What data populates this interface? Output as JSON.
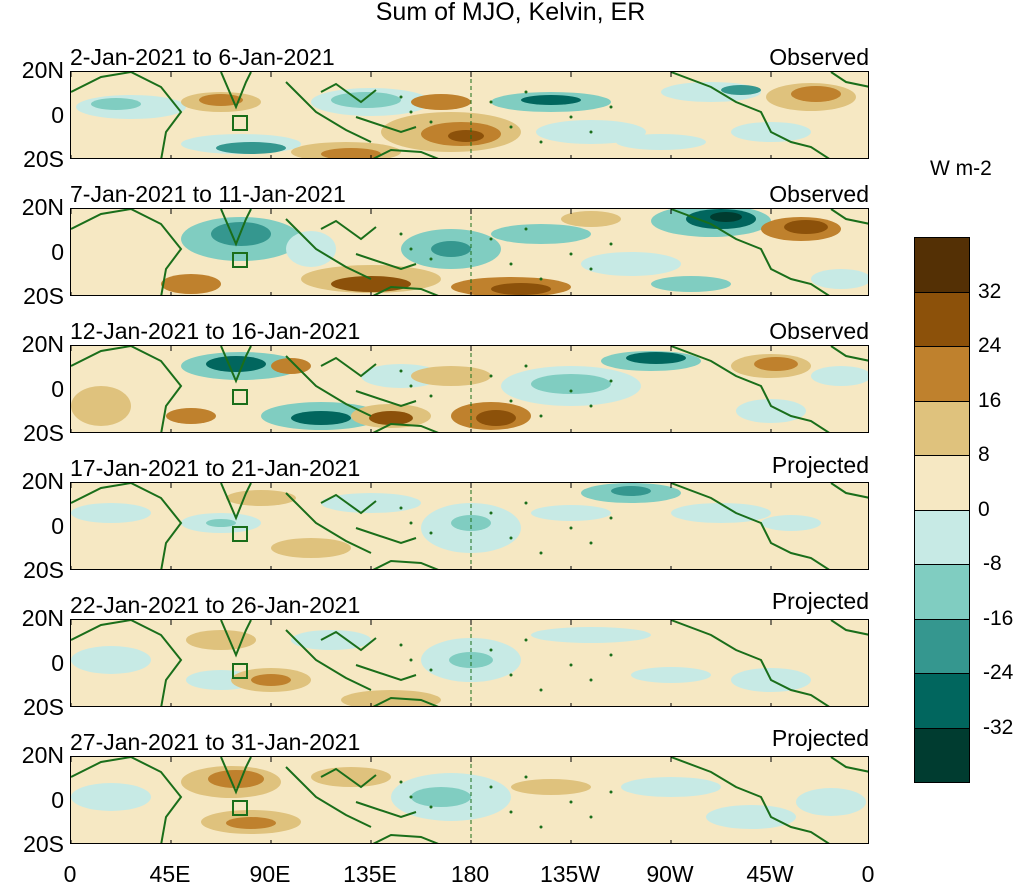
{
  "title": "Sum of MJO, Kelvin, ER",
  "colorbar": {
    "units": "W m-2",
    "levels": [
      "32",
      "24",
      "16",
      "8",
      "0",
      "-8",
      "-16",
      "-24",
      "-32"
    ],
    "colors": [
      "#543005",
      "#8c510a",
      "#bf812d",
      "#dfc27d",
      "#f6e8c3",
      "#c7eae5",
      "#80cdc1",
      "#35978f",
      "#01665e",
      "#003c30"
    ]
  },
  "lat_labels": [
    "20N",
    "0",
    "20S"
  ],
  "lon_labels": [
    "0",
    "45E",
    "90E",
    "135E",
    "180",
    "135W",
    "90W",
    "45W",
    "0"
  ],
  "coast_color": "#1a6e1a",
  "panels": [
    {
      "period": "2-Jan-2021 to 6-Jan-2021",
      "type": "Observed"
    },
    {
      "period": "7-Jan-2021 to 11-Jan-2021",
      "type": "Observed"
    },
    {
      "period": "12-Jan-2021 to 16-Jan-2021",
      "type": "Observed"
    },
    {
      "period": "17-Jan-2021 to 21-Jan-2021",
      "type": "Projected"
    },
    {
      "period": "22-Jan-2021 to 26-Jan-2021",
      "type": "Projected"
    },
    {
      "period": "27-Jan-2021 to 31-Jan-2021",
      "type": "Projected"
    }
  ]
}
